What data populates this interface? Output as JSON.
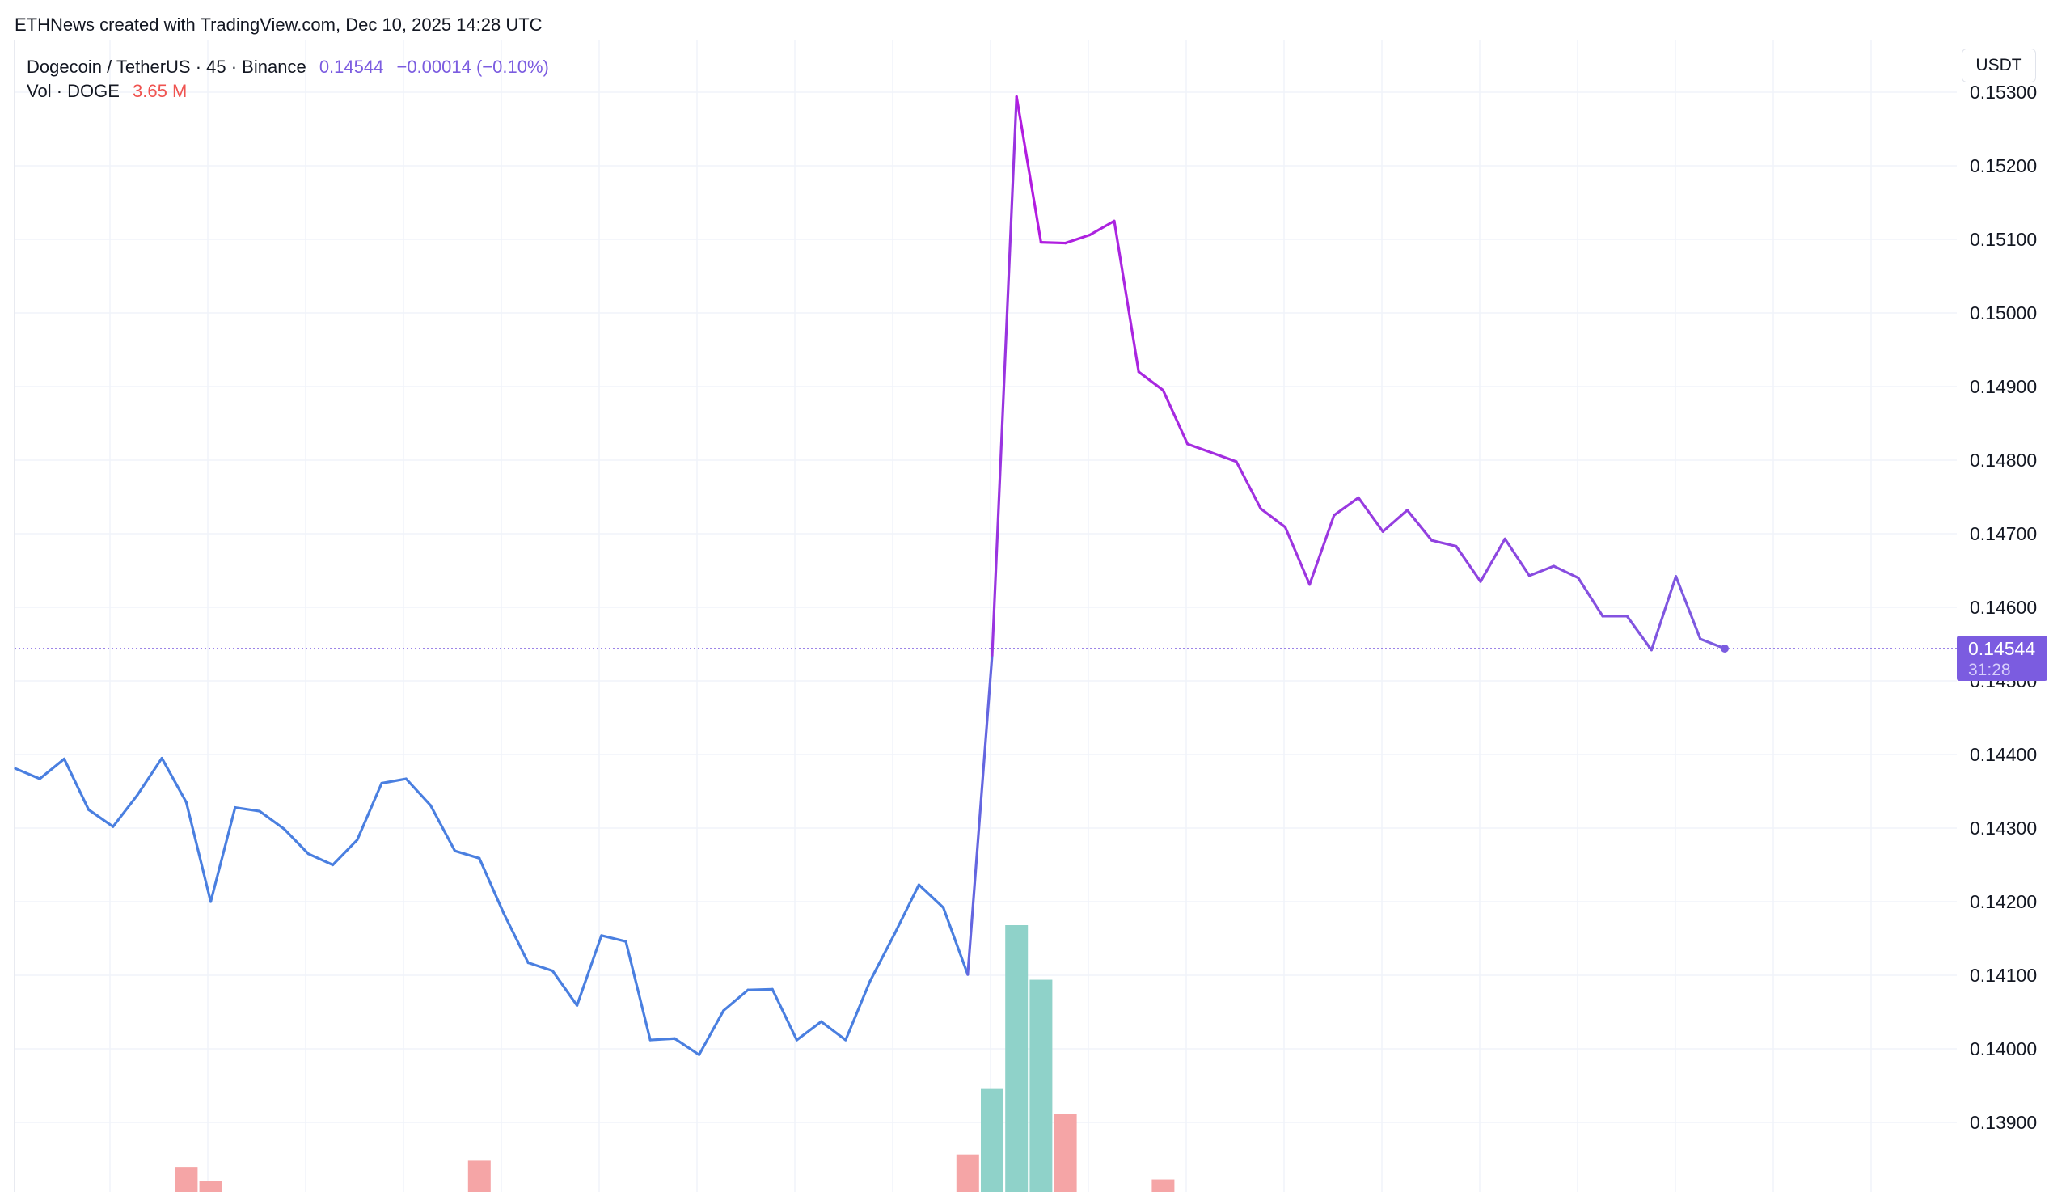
{
  "header": {
    "attribution": "ETHNews created with TradingView.com, Dec 10, 2025 14:28 UTC"
  },
  "legend": {
    "symbol": "Dogecoin / TetherUS · 45 · Binance",
    "price": "0.14544",
    "change": "−0.00014 (−0.10%)",
    "vol_label": "Vol · DOGE",
    "vol_value": "3.65 M"
  },
  "axis": {
    "unit": "USDT",
    "current_price_label": "0.14544",
    "countdown_label": "31:28"
  },
  "colors": {
    "line_blue": "#4a7fe0",
    "line_violet": "#7b5ce0",
    "line_magenta": "#b31be0",
    "vol_up": "#8fd2c9",
    "vol_down": "#f5a5a6",
    "price_tag": "#7b5ce0",
    "grid": "#f0f3fa"
  },
  "chart_data": {
    "type": "line",
    "title": "Dogecoin / TetherUS · 45 · Binance",
    "ylabel": "USDT",
    "ylim": [
      0.1381,
      0.1533
    ],
    "yticks": [
      0.139,
      0.14,
      0.141,
      0.142,
      0.143,
      0.144,
      0.145,
      0.146,
      0.147,
      0.148,
      0.149,
      0.15,
      0.151,
      0.152,
      0.153
    ],
    "ytick_labels": [
      "0.13900",
      "0.14000",
      "0.14100",
      "0.14200",
      "0.14300",
      "0.14400",
      "0.14500",
      "0.14600",
      "0.14700",
      "0.14800",
      "0.14900",
      "0.15000",
      "0.15100",
      "0.15200",
      "0.15300"
    ],
    "grid": true,
    "current_price": 0.14544,
    "series": [
      {
        "values": [
          0.14381,
          0.14367,
          0.14394,
          0.14325,
          0.14302,
          0.14345,
          0.14395,
          0.14335,
          0.142,
          0.14328,
          0.14323,
          0.14299,
          0.14265,
          0.1425,
          0.14284,
          0.14361,
          0.14367,
          0.14331,
          0.14269,
          0.14259,
          0.14184,
          0.14117,
          0.14106,
          0.14059,
          0.14154,
          0.14146,
          0.14012,
          0.14014,
          0.13992,
          0.14052,
          0.1408,
          0.14081,
          0.14012,
          0.14037,
          0.14012,
          0.14092,
          0.14156,
          0.14223,
          0.14192,
          0.14101,
          0.14535,
          0.15294,
          0.15096,
          0.15095,
          0.15106,
          0.15125,
          0.1492,
          0.14895,
          0.14822,
          0.1481,
          0.14798,
          0.14734,
          0.14709,
          0.14631,
          0.14725,
          0.14749,
          0.14703,
          0.14732,
          0.14691,
          0.14683,
          0.14635,
          0.14693,
          0.14643,
          0.14656,
          0.1464,
          0.14588,
          0.14588,
          0.14542,
          0.14642,
          0.14557,
          0.14544
        ]
      }
    ],
    "volume": [
      {
        "index": 7,
        "value": 0.16,
        "direction": "down"
      },
      {
        "index": 8,
        "value": 0.07,
        "direction": "down"
      },
      {
        "index": 19,
        "value": 0.2,
        "direction": "down"
      },
      {
        "index": 39,
        "value": 0.24,
        "direction": "down"
      },
      {
        "index": 40,
        "value": 0.66,
        "direction": "up"
      },
      {
        "index": 41,
        "value": 1.71,
        "direction": "up"
      },
      {
        "index": 42,
        "value": 1.36,
        "direction": "up"
      },
      {
        "index": 43,
        "value": 0.5,
        "direction": "down"
      },
      {
        "index": 47,
        "value": 0.08,
        "direction": "down"
      }
    ]
  }
}
